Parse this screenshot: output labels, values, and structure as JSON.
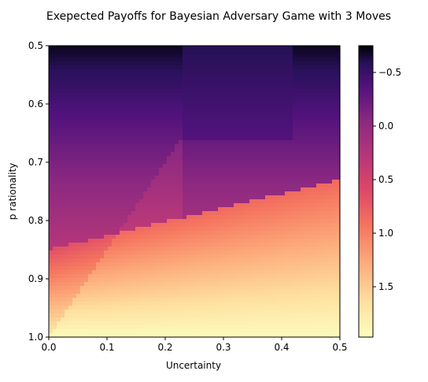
{
  "chart_data": {
    "type": "heatmap",
    "title": "Exepected Payoffs for Bayesian Adversary Game with 3 Moves",
    "xlabel": "Uncertainty",
    "ylabel": "p rationality",
    "xlim": [
      0.0,
      0.5
    ],
    "ylim": [
      1.0,
      0.5
    ],
    "x_ticks": [
      "0.0",
      "0.1",
      "0.2",
      "0.3",
      "0.4",
      "0.5"
    ],
    "y_ticks": [
      "0.5",
      "0.6",
      "0.7",
      "0.8",
      "0.9",
      "1.0"
    ],
    "colormap": "magma_r",
    "colorbar": {
      "range": [
        -0.75,
        1.97
      ],
      "ticks": [
        "−0.5",
        "0.0",
        "0.5",
        "1.0",
        "1.5"
      ],
      "tick_values": [
        -0.5,
        0.0,
        0.5,
        1.0,
        1.5
      ]
    },
    "corner_values": {
      "p0.5_u0.0": -0.6,
      "p0.5_u0.5": -0.65,
      "p0.7_u0.0": 0.05,
      "p0.8_u0.5": 0.95,
      "p1.0_u0.0": 1.95,
      "p1.0_u0.5": 1.9
    },
    "grid": false
  }
}
